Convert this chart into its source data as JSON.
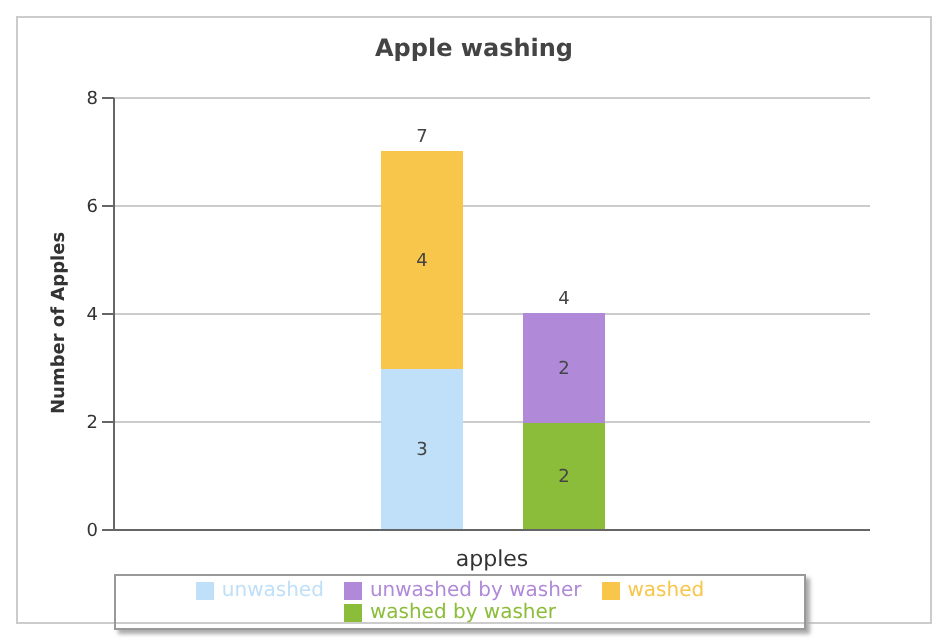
{
  "chart_data": {
    "type": "bar",
    "title": "Apple washing",
    "ylabel": "Number of Apples",
    "xlabel": "apples",
    "categories": [
      null,
      null
    ],
    "stacked": true,
    "series": [
      {
        "name": "unwashed",
        "color": "#bfe0f8",
        "values": [
          3,
          null
        ]
      },
      {
        "name": "washed",
        "color": "#f7c64a",
        "values": [
          4,
          null
        ]
      },
      {
        "name": "washed by washer",
        "color": "#8cbd3a",
        "values": [
          null,
          2
        ]
      },
      {
        "name": "unwashed by washer",
        "color": "#b08ad8",
        "values": [
          null,
          2
        ]
      }
    ],
    "totals": [
      "7",
      "4"
    ],
    "ylim": [
      0,
      8
    ],
    "yticks": [
      0,
      2,
      4,
      6,
      8
    ],
    "grid": "y",
    "legend": "bottom",
    "data_labels": true
  }
}
